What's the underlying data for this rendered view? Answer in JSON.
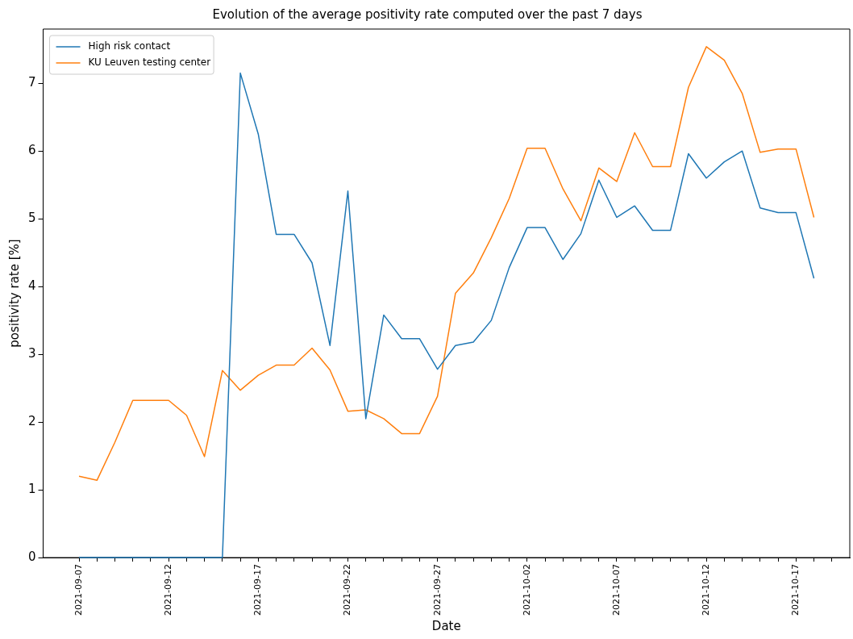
{
  "chart_data": {
    "type": "line",
    "title": "Evolution of the average positivity rate computed over the past 7 days",
    "xlabel": "Date",
    "ylabel": "positivity rate [%]",
    "x": [
      "2021-09-07",
      "2021-09-08",
      "2021-09-09",
      "2021-09-10",
      "2021-09-11",
      "2021-09-12",
      "2021-09-13",
      "2021-09-14",
      "2021-09-15",
      "2021-09-16",
      "2021-09-17",
      "2021-09-18",
      "2021-09-19",
      "2021-09-20",
      "2021-09-21",
      "2021-09-22",
      "2021-09-23",
      "2021-09-24",
      "2021-09-25",
      "2021-09-26",
      "2021-09-27",
      "2021-09-28",
      "2021-09-29",
      "2021-09-30",
      "2021-10-01",
      "2021-10-02",
      "2021-10-03",
      "2021-10-04",
      "2021-10-05",
      "2021-10-06",
      "2021-10-07",
      "2021-10-08",
      "2021-10-09",
      "2021-10-10",
      "2021-10-11",
      "2021-10-12",
      "2021-10-13",
      "2021-10-14",
      "2021-10-15",
      "2021-10-16",
      "2021-10-17",
      "2021-10-18"
    ],
    "series": [
      {
        "name": "High risk contact",
        "color": "#1f77b4",
        "values": [
          0,
          0,
          0,
          0,
          0,
          0,
          0,
          0,
          0,
          7.15,
          6.25,
          4.77,
          4.77,
          4.35,
          3.13,
          5.41,
          2.05,
          3.58,
          3.23,
          3.23,
          2.78,
          3.13,
          3.18,
          3.5,
          4.28,
          4.87,
          4.87,
          4.4,
          4.78,
          5.57,
          5.02,
          5.19,
          4.83,
          4.83,
          5.96,
          5.6,
          5.84,
          6.0,
          5.16,
          5.09,
          5.09,
          4.12
        ]
      },
      {
        "name": "KU Leuven testing center",
        "color": "#ff7f0e",
        "values": [
          1.2,
          1.14,
          1.7,
          2.32,
          2.32,
          2.32,
          2.1,
          1.49,
          2.76,
          2.47,
          2.69,
          2.84,
          2.84,
          3.09,
          2.77,
          2.16,
          2.18,
          2.05,
          1.83,
          1.83,
          2.38,
          3.9,
          4.2,
          4.72,
          5.3,
          6.04,
          6.04,
          5.44,
          4.97,
          5.75,
          5.55,
          6.27,
          5.77,
          5.77,
          6.94,
          7.54,
          7.34,
          6.85,
          5.98,
          6.03,
          6.03,
          5.02
        ]
      }
    ],
    "xlim": [
      "2021-09-05",
      "2021-10-20"
    ],
    "xticks": [
      "2021-09-07",
      {
        "value": "2021-09-08",
        "label": null
      },
      {
        "value": "2021-09-09",
        "label": null
      },
      {
        "value": "2021-09-10",
        "label": null
      },
      {
        "value": "2021-09-11",
        "label": null
      },
      "2021-09-12",
      {
        "value": "2021-09-13",
        "label": null
      },
      {
        "value": "2021-09-14",
        "label": null
      },
      {
        "value": "2021-09-15",
        "label": null
      },
      {
        "value": "2021-09-16",
        "label": null
      },
      "2021-09-17",
      {
        "value": "2021-09-18",
        "label": null
      },
      {
        "value": "2021-09-19",
        "label": null
      },
      {
        "value": "2021-09-20",
        "label": null
      },
      {
        "value": "2021-09-21",
        "label": null
      },
      "2021-09-22",
      {
        "value": "2021-09-23",
        "label": null
      },
      {
        "value": "2021-09-24",
        "label": null
      },
      {
        "value": "2021-09-25",
        "label": null
      },
      {
        "value": "2021-09-26",
        "label": null
      },
      "2021-09-27",
      {
        "value": "2021-09-28",
        "label": null
      },
      {
        "value": "2021-09-29",
        "label": null
      },
      {
        "value": "2021-09-30",
        "label": null
      },
      {
        "value": "2021-10-01",
        "label": null
      },
      "2021-10-02",
      {
        "value": "2021-10-03",
        "label": null
      },
      {
        "value": "2021-10-04",
        "label": null
      },
      {
        "value": "2021-10-05",
        "label": null
      },
      {
        "value": "2021-10-06",
        "label": null
      },
      "2021-10-07",
      {
        "value": "2021-10-08",
        "label": null
      },
      {
        "value": "2021-10-09",
        "label": null
      },
      {
        "value": "2021-10-10",
        "label": null
      },
      {
        "value": "2021-10-11",
        "label": null
      },
      "2021-10-12",
      {
        "value": "2021-10-13",
        "label": null
      },
      {
        "value": "2021-10-14",
        "label": null
      },
      {
        "value": "2021-10-15",
        "label": null
      },
      {
        "value": "2021-10-16",
        "label": null
      },
      "2021-10-17",
      {
        "value": "2021-10-18",
        "label": null
      },
      {
        "value": "2021-10-19",
        "label": null
      }
    ],
    "ylim": [
      0,
      7.8
    ],
    "yticks": [
      0,
      1,
      2,
      3,
      4,
      5,
      6,
      7
    ],
    "legend": "top left",
    "grid": false,
    "marker": "none",
    "line_style": "solid"
  }
}
